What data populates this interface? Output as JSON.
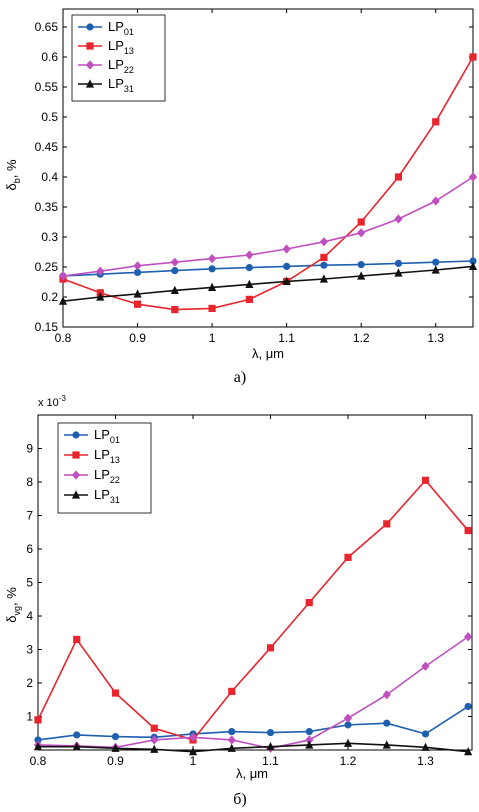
{
  "chart_data": [
    {
      "type": "line",
      "caption": "а)",
      "xlabel": "λ, μm",
      "ylabel_main": "δ",
      "ylabel_sub": "b",
      "ylabel_tail": ", %",
      "xlim": [
        0.8,
        1.35
      ],
      "ylim": [
        0.15,
        0.68
      ],
      "xticks": [
        "0.8",
        "0.9",
        "1",
        "1.1",
        "1.2",
        "1.3"
      ],
      "xtick_values": [
        0.8,
        0.9,
        1.0,
        1.1,
        1.2,
        1.3
      ],
      "yticks": [
        "0.15",
        "0.2",
        "0.25",
        "0.3",
        "0.35",
        "0.4",
        "0.45",
        "0.5",
        "0.55",
        "0.6",
        "0.65"
      ],
      "ytick_values": [
        0.15,
        0.2,
        0.25,
        0.3,
        0.35,
        0.4,
        0.45,
        0.5,
        0.55,
        0.6,
        0.65
      ],
      "legend_position": "top-left",
      "x": [
        0.8,
        0.85,
        0.9,
        0.95,
        1.0,
        1.05,
        1.1,
        1.15,
        1.2,
        1.25,
        1.3,
        1.35
      ],
      "series": [
        {
          "name": "LP",
          "sub": "01",
          "color": "#1f5fb0",
          "marker": "circle",
          "values": [
            0.235,
            0.238,
            0.241,
            0.244,
            0.247,
            0.249,
            0.251,
            0.253,
            0.254,
            0.256,
            0.258,
            0.26
          ]
        },
        {
          "name": "LP",
          "sub": "13",
          "color": "#e8242c",
          "marker": "square",
          "values": [
            0.23,
            0.207,
            0.188,
            0.179,
            0.181,
            0.196,
            0.226,
            0.266,
            0.325,
            0.4,
            0.492,
            0.6
          ]
        },
        {
          "name": "LP",
          "sub": "22",
          "color": "#c04fc0",
          "marker": "diamond",
          "values": [
            0.235,
            0.243,
            0.252,
            0.258,
            0.264,
            0.27,
            0.28,
            0.292,
            0.307,
            0.33,
            0.36,
            0.4
          ]
        },
        {
          "name": "LP",
          "sub": "31",
          "color": "#111111",
          "marker": "triangle",
          "values": [
            0.193,
            0.2,
            0.205,
            0.211,
            0.216,
            0.221,
            0.226,
            0.23,
            0.235,
            0.24,
            0.245,
            0.251
          ]
        }
      ]
    },
    {
      "type": "line",
      "caption": "б)",
      "xlabel": "λ, μm",
      "ylabel_main": "δ",
      "ylabel_sub": "vg",
      "ylabel_tail": ", %",
      "multiplier": "x 10",
      "multiplier_exp": "-3",
      "xlim": [
        0.8,
        1.36
      ],
      "ylim": [
        0,
        10
      ],
      "xticks": [
        "0.8",
        "0.9",
        "1",
        "1.1",
        "1.2",
        "1.3"
      ],
      "xtick_values": [
        0.8,
        0.9,
        1.0,
        1.1,
        1.2,
        1.3
      ],
      "yticks": [
        "1",
        "2",
        "3",
        "4",
        "5",
        "6",
        "7",
        "8",
        "9"
      ],
      "ytick_values": [
        1,
        2,
        3,
        4,
        5,
        6,
        7,
        8,
        9
      ],
      "legend_position": "top-left",
      "x": [
        0.8,
        0.85,
        0.9,
        0.95,
        1.0,
        1.05,
        1.1,
        1.15,
        1.2,
        1.25,
        1.3,
        1.355
      ],
      "series": [
        {
          "name": "LP",
          "sub": "01",
          "color": "#1f5fb0",
          "marker": "circle",
          "values": [
            0.3,
            0.45,
            0.4,
            0.38,
            0.48,
            0.55,
            0.52,
            0.55,
            0.75,
            0.8,
            0.48,
            1.3
          ]
        },
        {
          "name": "LP",
          "sub": "13",
          "color": "#e8242c",
          "marker": "square",
          "values": [
            0.9,
            3.3,
            1.7,
            0.65,
            0.3,
            1.75,
            3.05,
            4.4,
            5.75,
            6.75,
            8.05,
            6.55
          ]
        },
        {
          "name": "LP",
          "sub": "22",
          "color": "#c04fc0",
          "marker": "diamond",
          "values": [
            0.15,
            0.12,
            0.08,
            0.3,
            0.38,
            0.3,
            0.05,
            0.3,
            0.95,
            1.65,
            2.5,
            3.38
          ]
        },
        {
          "name": "LP",
          "sub": "31",
          "color": "#111111",
          "marker": "triangle",
          "values": [
            0.1,
            0.1,
            0.05,
            0.02,
            -0.05,
            0.05,
            0.1,
            0.15,
            0.2,
            0.15,
            0.08,
            -0.05
          ]
        }
      ]
    }
  ]
}
